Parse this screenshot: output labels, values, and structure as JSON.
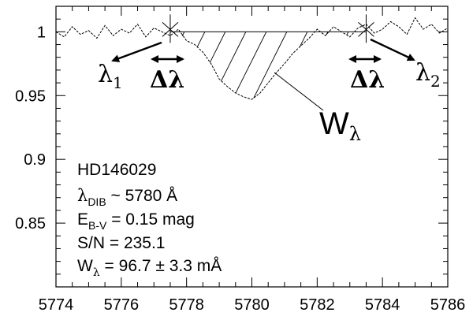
{
  "chart_data": {
    "type": "line",
    "title": "",
    "xlabel": "",
    "ylabel": "",
    "xlim": [
      5774,
      5786
    ],
    "ylim": [
      0.8,
      1.02
    ],
    "x_ticks": [
      "5774",
      "5776",
      "5778",
      "5780",
      "5782",
      "5784",
      "5786"
    ],
    "y_ticks": [
      "0.85",
      "0.9",
      "0.95",
      "1"
    ],
    "continuum": 1.0,
    "lambda1": 5777.5,
    "lambda2": 5783.5,
    "delta_lambda": "Δλ",
    "lambda1_label": "λ",
    "lambda1_sub": "1",
    "lambda2_label": "λ",
    "lambda2_sub": "2",
    "w_label": "W",
    "w_sub": "λ",
    "info": {
      "star": "HD146029",
      "line1_main": "λ",
      "line1_sub": "DIB",
      "line1_rest": " ~ 5780 Å",
      "line2_main": "E",
      "line2_sub": "B-V",
      "line2_rest": " = 0.15 mag",
      "line3": "S/N = 235.1",
      "line4_main": "W",
      "line4_sub": "λ",
      "line4_rest": " = 96.7 ± 3.3 mÅ"
    },
    "series": [
      {
        "x": [
          5774.0,
          5774.25,
          5774.5,
          5774.75,
          5775.0,
          5775.25,
          5775.5,
          5775.75,
          5776.0,
          5776.25,
          5776.5,
          5776.75,
          5777.0,
          5777.25,
          5777.5,
          5777.75,
          5778.0,
          5778.25,
          5778.5,
          5778.75,
          5779.0,
          5779.25,
          5779.5,
          5779.75,
          5780.0,
          5780.25,
          5780.5,
          5780.75,
          5781.0,
          5781.25,
          5781.5,
          5781.75,
          5782.0,
          5782.25,
          5782.5,
          5782.75,
          5783.0,
          5783.25,
          5783.5,
          5783.75,
          5784.0,
          5784.25,
          5784.5,
          5784.75,
          5785.0,
          5785.25,
          5785.5,
          5785.75,
          5786.0
        ],
        "y": [
          1.0,
          0.996,
          1.004,
          0.998,
          1.001,
          0.995,
          1.005,
          0.997,
          1.002,
          0.999,
          1.006,
          0.996,
          1.003,
          1.0,
          0.997,
          1.002,
          0.993,
          0.99,
          0.984,
          0.975,
          0.963,
          0.957,
          0.952,
          0.949,
          0.947,
          0.952,
          0.96,
          0.968,
          0.975,
          0.983,
          0.989,
          0.995,
          1.002,
          0.997,
          1.004,
          1.0,
          0.996,
          1.003,
          1.006,
          0.999,
          1.002,
          1.008,
          1.004,
          0.998,
          1.011,
          1.002,
          1.006,
          0.999,
          1.003
        ]
      }
    ]
  }
}
